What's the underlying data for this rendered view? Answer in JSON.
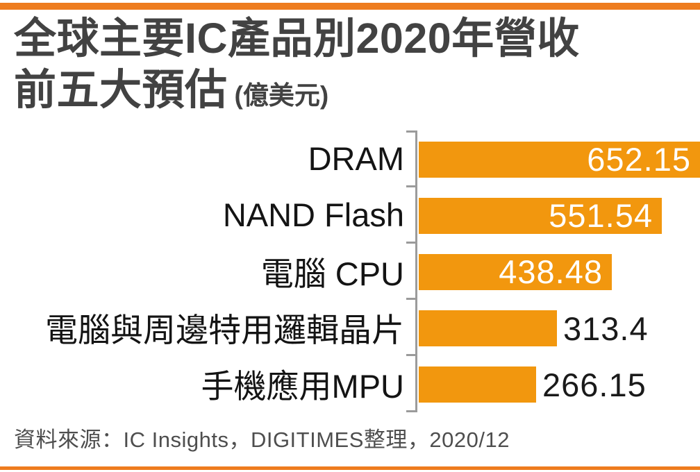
{
  "header": {
    "title_line1": "全球主要IC產品別2020年營收",
    "title_line2": "前五大預估",
    "unit_label": "(億美元)"
  },
  "footer": {
    "source": "資料來源：IC Insights，DIGITIMES整理，2020/12"
  },
  "colors": {
    "bar_fill": "#F2970E",
    "accent_strip": "#EE7C1E",
    "axis_line": "#9B9B9B",
    "title_text": "#424242",
    "value_inside_text": "#FFFFFF",
    "value_outside_text": "#1A1A1A"
  },
  "chart_data": {
    "type": "bar",
    "orientation": "horizontal",
    "title": "全球主要IC產品別2020年營收前五大預估",
    "unit": "億美元",
    "categories": [
      "DRAM",
      "NAND Flash",
      "電腦 CPU",
      "電腦與周邊特用邏輯晶片",
      "手機應用MPU"
    ],
    "values": [
      652.15,
      551.54,
      438.48,
      313.4,
      266.15
    ],
    "value_labels": [
      "652.15",
      "551.54",
      "438.48",
      "313.4",
      "266.15"
    ],
    "xlim": [
      0,
      660
    ],
    "grid": false,
    "legend": false,
    "value_label_position": [
      "inside",
      "inside",
      "inside",
      "outside",
      "outside"
    ],
    "source": "IC Insights，DIGITIMES整理，2020/12"
  }
}
